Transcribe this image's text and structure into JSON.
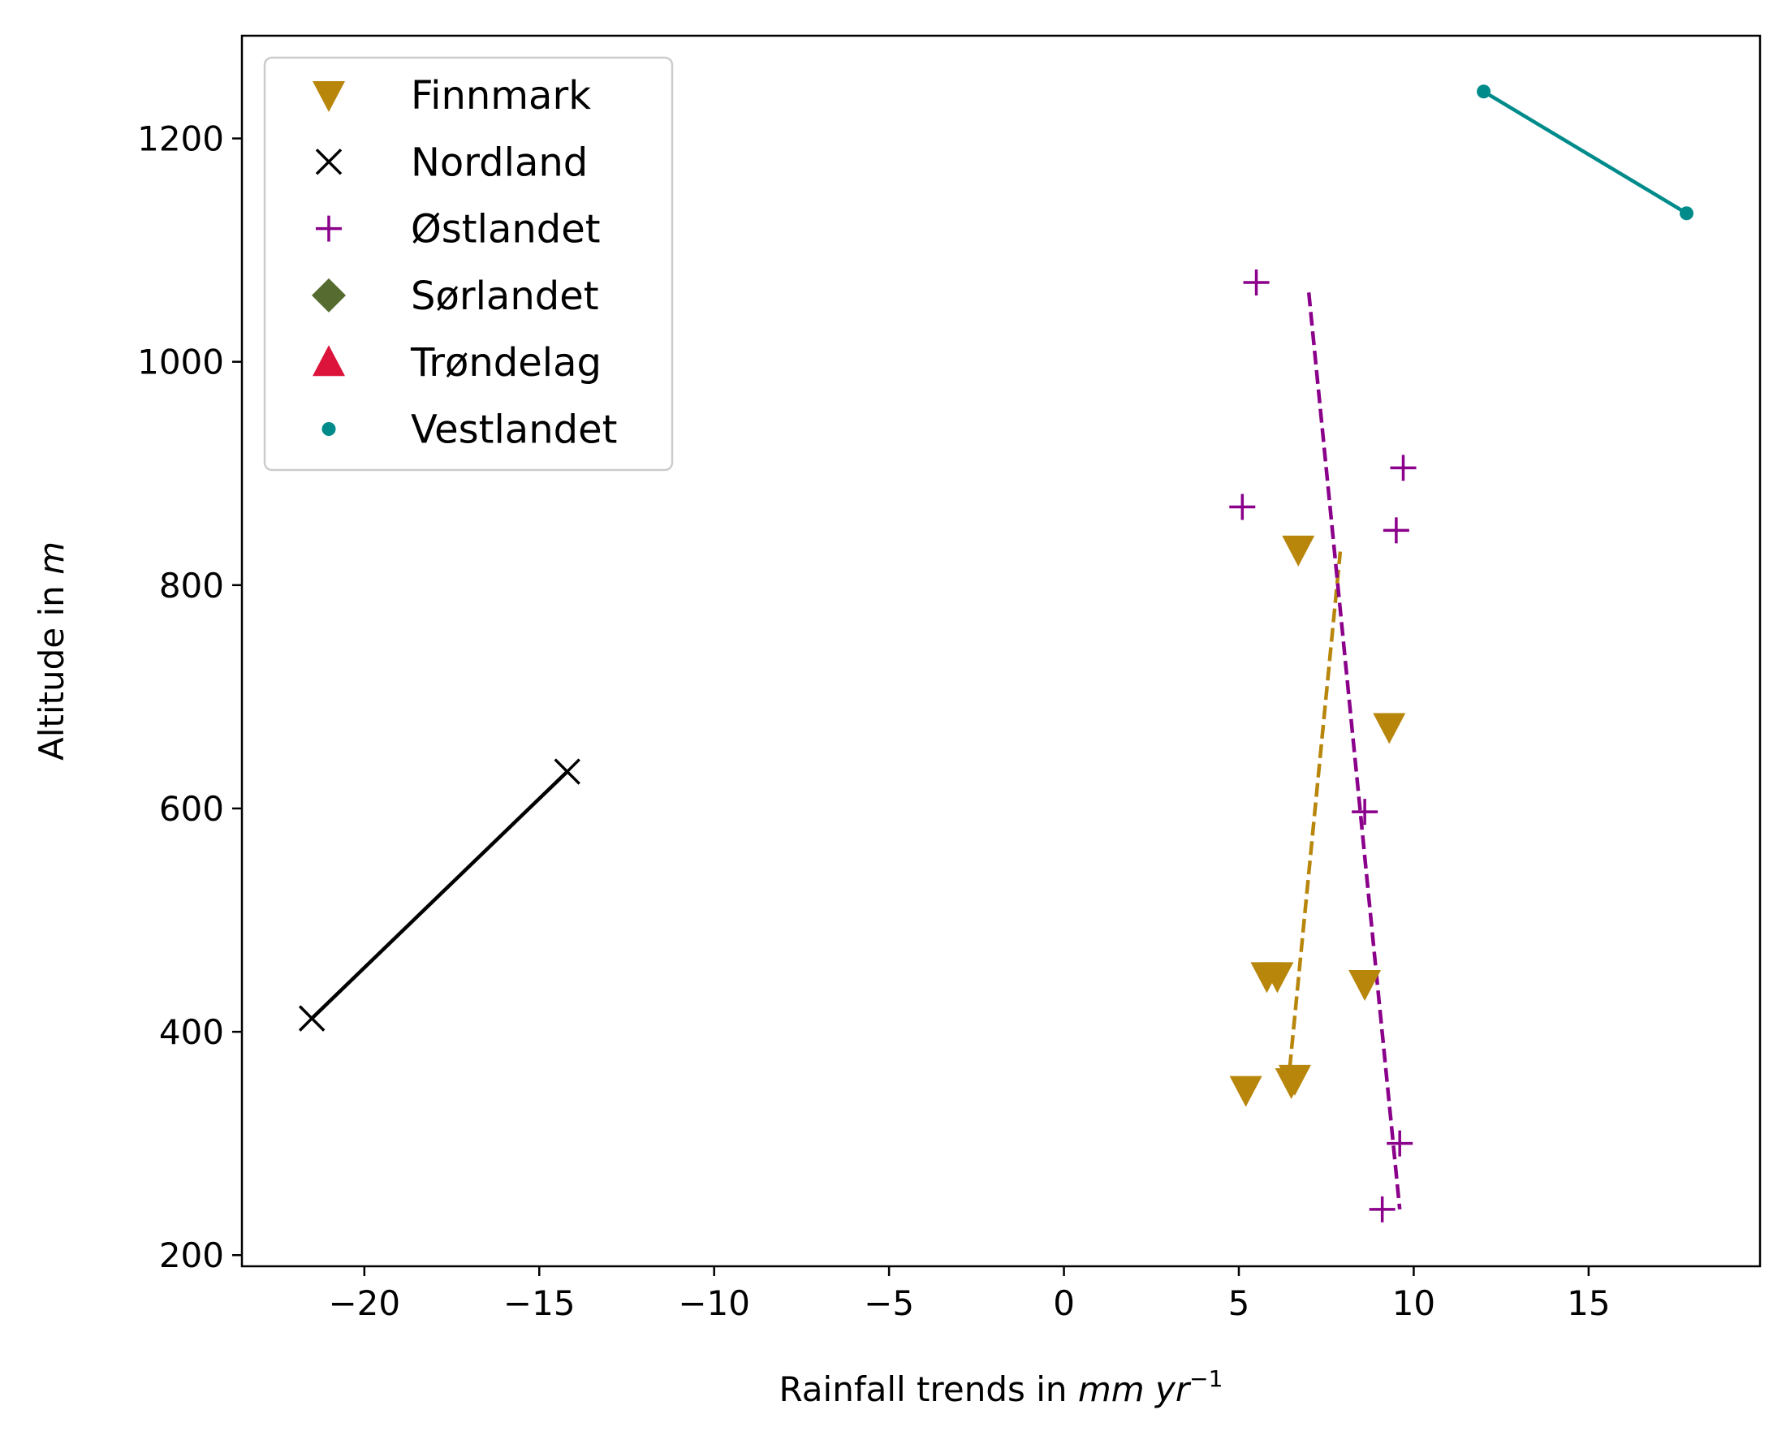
{
  "chart_data": {
    "type": "scatter",
    "xlabel_prefix": "Rainfall trends in ",
    "xlabel_unit": "mm yr",
    "xlabel_exp": "−1",
    "ylabel_prefix": "Altitude in ",
    "ylabel_unit": "m",
    "xlim": [
      -23.5,
      19.9
    ],
    "ylim": [
      190,
      1292
    ],
    "xticks": [
      -20,
      -15,
      -10,
      -5,
      0,
      5,
      10,
      15
    ],
    "xtick_labels": [
      "−20",
      "−15",
      "−10",
      "−5",
      "0",
      "5",
      "10",
      "15"
    ],
    "yticks": [
      200,
      400,
      600,
      800,
      1000,
      1200
    ],
    "ytick_labels": [
      "200",
      "400",
      "600",
      "800",
      "1000",
      "1200"
    ],
    "grid": false,
    "legend_position": "top-left",
    "series": [
      {
        "name": "Finnmark",
        "marker": "triangle-down",
        "color": "#B8860B",
        "points": [
          [
            6.7,
            832
          ],
          [
            9.3,
            673
          ],
          [
            5.8,
            450
          ],
          [
            6.1,
            450
          ],
          [
            8.6,
            443
          ],
          [
            6.6,
            358
          ],
          [
            6.5,
            355
          ],
          [
            5.2,
            348
          ]
        ],
        "trend": {
          "style": "dashed",
          "x": [
            6.4,
            7.9
          ],
          "y": [
            350,
            830
          ]
        }
      },
      {
        "name": "Nordland",
        "marker": "x",
        "color": "#000000",
        "points": [
          [
            -14.2,
            633
          ],
          [
            -21.5,
            412
          ]
        ],
        "trend": {
          "style": "solid",
          "x": [
            -14.2,
            -21.5
          ],
          "y": [
            633,
            412
          ]
        }
      },
      {
        "name": "Østlandet",
        "marker": "plus",
        "color": "#8B008B",
        "points": [
          [
            5.5,
            1071
          ],
          [
            9.7,
            905
          ],
          [
            5.1,
            870
          ],
          [
            9.5,
            849
          ],
          [
            8.6,
            597
          ],
          [
            9.6,
            300
          ],
          [
            9.1,
            241
          ]
        ],
        "trend": {
          "style": "dashed",
          "x": [
            7.0,
            9.6
          ],
          "y": [
            1062,
            241
          ]
        }
      },
      {
        "name": "Sørlandet",
        "marker": "diamond",
        "color": "#556B2F",
        "points": []
      },
      {
        "name": "Trøndelag",
        "marker": "triangle-up",
        "color": "#DC143C",
        "points": []
      },
      {
        "name": "Vestlandet",
        "marker": "dot",
        "color": "#008B8B",
        "points": [
          [
            12.0,
            1242
          ],
          [
            17.8,
            1133
          ]
        ],
        "trend": {
          "style": "solid",
          "x": [
            12.0,
            17.8
          ],
          "y": [
            1242,
            1133
          ]
        }
      }
    ]
  }
}
